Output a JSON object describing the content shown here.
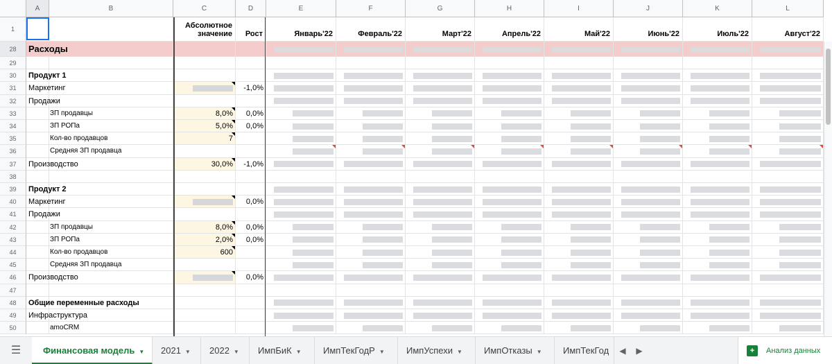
{
  "columns": [
    "A",
    "B",
    "C",
    "D",
    "E",
    "F",
    "G",
    "H",
    "I",
    "J",
    "K",
    "L"
  ],
  "header_row": {
    "row_number": "1",
    "abs_value_line1": "Абсолютное",
    "abs_value_line2": "значение",
    "growth": "Рост",
    "months": [
      "Январь'22",
      "Февраль'22",
      "Март'22",
      "Апрель'22",
      "Май'22",
      "Июнь'22",
      "Июль'22",
      "Август'22"
    ]
  },
  "rows": [
    {
      "n": "28",
      "label": "Расходы",
      "style": "section"
    },
    {
      "n": "29",
      "label": "",
      "style": "blank"
    },
    {
      "n": "30",
      "label": "Продукт 1",
      "style": "bold"
    },
    {
      "n": "31",
      "label": "Маркетинг",
      "style": "normal",
      "c": "",
      "c_filled": true,
      "d": "-1,0%"
    },
    {
      "n": "32",
      "label": "Продажи",
      "style": "normal"
    },
    {
      "n": "33",
      "label": "ЗП продавцы",
      "style": "indent",
      "c": "8,0%",
      "d": "0,0%"
    },
    {
      "n": "34",
      "label": "ЗП РОПа",
      "style": "indent",
      "c": "5,0%",
      "d": "0,0%"
    },
    {
      "n": "35",
      "label": "Кол-во продавцов",
      "style": "indent",
      "c": "7"
    },
    {
      "n": "36",
      "label": "Средняя ЗП продавца",
      "style": "indent"
    },
    {
      "n": "37",
      "label": "Производство",
      "style": "normal",
      "c": "30,0%",
      "d": "-1,0%"
    },
    {
      "n": "38",
      "label": "",
      "style": "blank"
    },
    {
      "n": "39",
      "label": "Продукт 2",
      "style": "bold"
    },
    {
      "n": "40",
      "label": "Маркетинг",
      "style": "normal",
      "c": "",
      "c_filled": true,
      "d": "0,0%"
    },
    {
      "n": "41",
      "label": "Продажи",
      "style": "normal"
    },
    {
      "n": "42",
      "label": "ЗП продавцы",
      "style": "indent",
      "c": "8,0%",
      "d": "0,0%"
    },
    {
      "n": "43",
      "label": "ЗП РОПа",
      "style": "indent",
      "c": "2,0%",
      "d": "0,0%"
    },
    {
      "n": "44",
      "label": "Кол-во продавцов",
      "style": "indent",
      "c": "600"
    },
    {
      "n": "45",
      "label": "Средняя ЗП продавца",
      "style": "indent"
    },
    {
      "n": "46",
      "label": "Производство",
      "style": "normal",
      "c": "",
      "c_filled": true,
      "d": "0,0%"
    },
    {
      "n": "47",
      "label": "",
      "style": "blank"
    },
    {
      "n": "48",
      "label": "Общие переменные расходы",
      "style": "bold"
    },
    {
      "n": "49",
      "label": "Инфраструктура",
      "style": "normal"
    },
    {
      "n": "50",
      "label": "amoCRM",
      "style": "indent"
    }
  ],
  "tabs": [
    {
      "label": "Финансовая модель",
      "active": true
    },
    {
      "label": "2021",
      "active": false
    },
    {
      "label": "2022",
      "active": false
    },
    {
      "label": "ИмпБиК",
      "active": false
    },
    {
      "label": "ИмпТекГодР",
      "active": false
    },
    {
      "label": "ИмпУспехи",
      "active": false
    },
    {
      "label": "ИмпОтказы",
      "active": false
    },
    {
      "label": "ИмпТекГод",
      "active": false
    }
  ],
  "explore_label": "Анализ данных",
  "colors": {
    "section_bg": "#f4cccc",
    "input_bg": "#fdf6e3",
    "accent": "#188038",
    "placeholder": "#dadce0"
  }
}
